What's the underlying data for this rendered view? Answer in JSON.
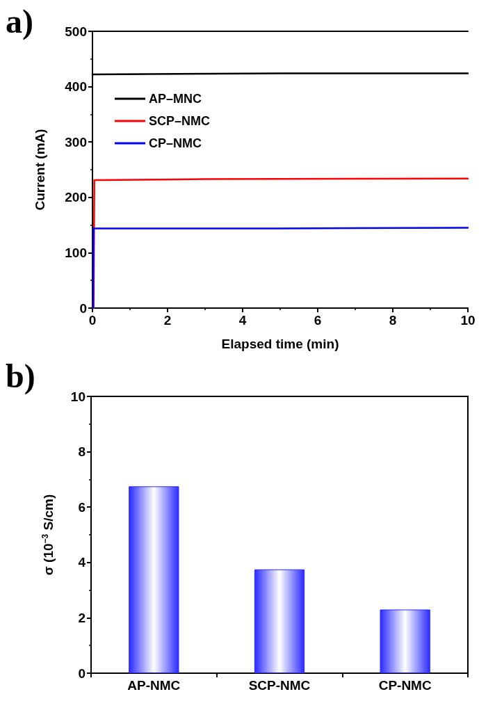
{
  "chart_data": [
    {
      "type": "line",
      "annotations": [
        "a)"
      ],
      "xlabel": "Elapsed time (min)",
      "ylabel": "Current (mA)",
      "xlim": [
        0,
        10
      ],
      "xticks": [
        0,
        2,
        4,
        6,
        8,
        10
      ],
      "ylim": [
        0,
        500
      ],
      "yticks": [
        0,
        100,
        200,
        300,
        400,
        500
      ],
      "grid": false,
      "legend": "top left",
      "marker": "none",
      "line_style": "solid",
      "series": [
        {
          "name": "AP–MNC",
          "color": "#000000",
          "x": [
            0,
            5,
            10
          ],
          "values": [
            422,
            424,
            424
          ]
        },
        {
          "name": "SCP–NMC",
          "color": "#ff0000",
          "x": [
            0.03,
            0.05,
            3,
            10
          ],
          "values": [
            0,
            231,
            233,
            234
          ]
        },
        {
          "name": "CP–NMC",
          "color": "#0000ff",
          "x": [
            0.02,
            0.03,
            5,
            10
          ],
          "values": [
            0,
            144,
            144,
            145
          ]
        }
      ]
    },
    {
      "type": "bar",
      "annotations": [
        "b)"
      ],
      "ylabel": "σ (10$^{−3}$ S/cm)",
      "categories": [
        "AP-NMC",
        "SCP-NMC",
        "CP-NMC"
      ],
      "values": [
        6.75,
        3.75,
        2.3
      ],
      "color": "#2a2aff",
      "ylim": [
        0,
        10
      ],
      "yticks": [
        0,
        2,
        4,
        6,
        8,
        10
      ],
      "grid": false,
      "legend": false
    }
  ]
}
